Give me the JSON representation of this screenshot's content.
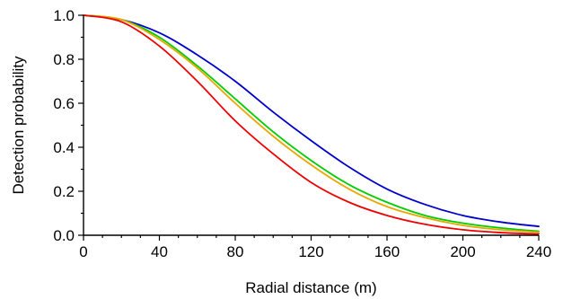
{
  "chart_data": {
    "type": "line",
    "title": "",
    "xlabel": "Radial distance (m)",
    "ylabel": "Detection probability",
    "xlim": [
      0,
      240
    ],
    "ylim": [
      0,
      1
    ],
    "x_ticks": [
      "0",
      "40",
      "80",
      "120",
      "160",
      "200",
      "240"
    ],
    "y_ticks": [
      "0.0",
      "0.2",
      "0.4",
      "0.6",
      "0.8",
      "1.0"
    ],
    "grid": false,
    "legend": "none",
    "x": [
      0,
      20,
      40,
      60,
      80,
      100,
      120,
      140,
      160,
      180,
      200,
      220,
      240
    ],
    "series": [
      {
        "color": "#0000cc",
        "values": [
          1.0,
          0.98,
          0.92,
          0.82,
          0.7,
          0.56,
          0.43,
          0.31,
          0.21,
          0.14,
          0.09,
          0.06,
          0.04
        ]
      },
      {
        "color": "#00cc00",
        "values": [
          1.0,
          0.98,
          0.9,
          0.77,
          0.62,
          0.47,
          0.34,
          0.23,
          0.15,
          0.09,
          0.055,
          0.033,
          0.018
        ]
      },
      {
        "color": "#e6a800",
        "values": [
          1.0,
          0.98,
          0.89,
          0.76,
          0.6,
          0.45,
          0.32,
          0.21,
          0.13,
          0.08,
          0.045,
          0.025,
          0.014
        ]
      },
      {
        "color": "#ee0000",
        "values": [
          1.0,
          0.97,
          0.86,
          0.7,
          0.52,
          0.37,
          0.24,
          0.15,
          0.09,
          0.05,
          0.025,
          0.012,
          0.006
        ]
      }
    ]
  }
}
